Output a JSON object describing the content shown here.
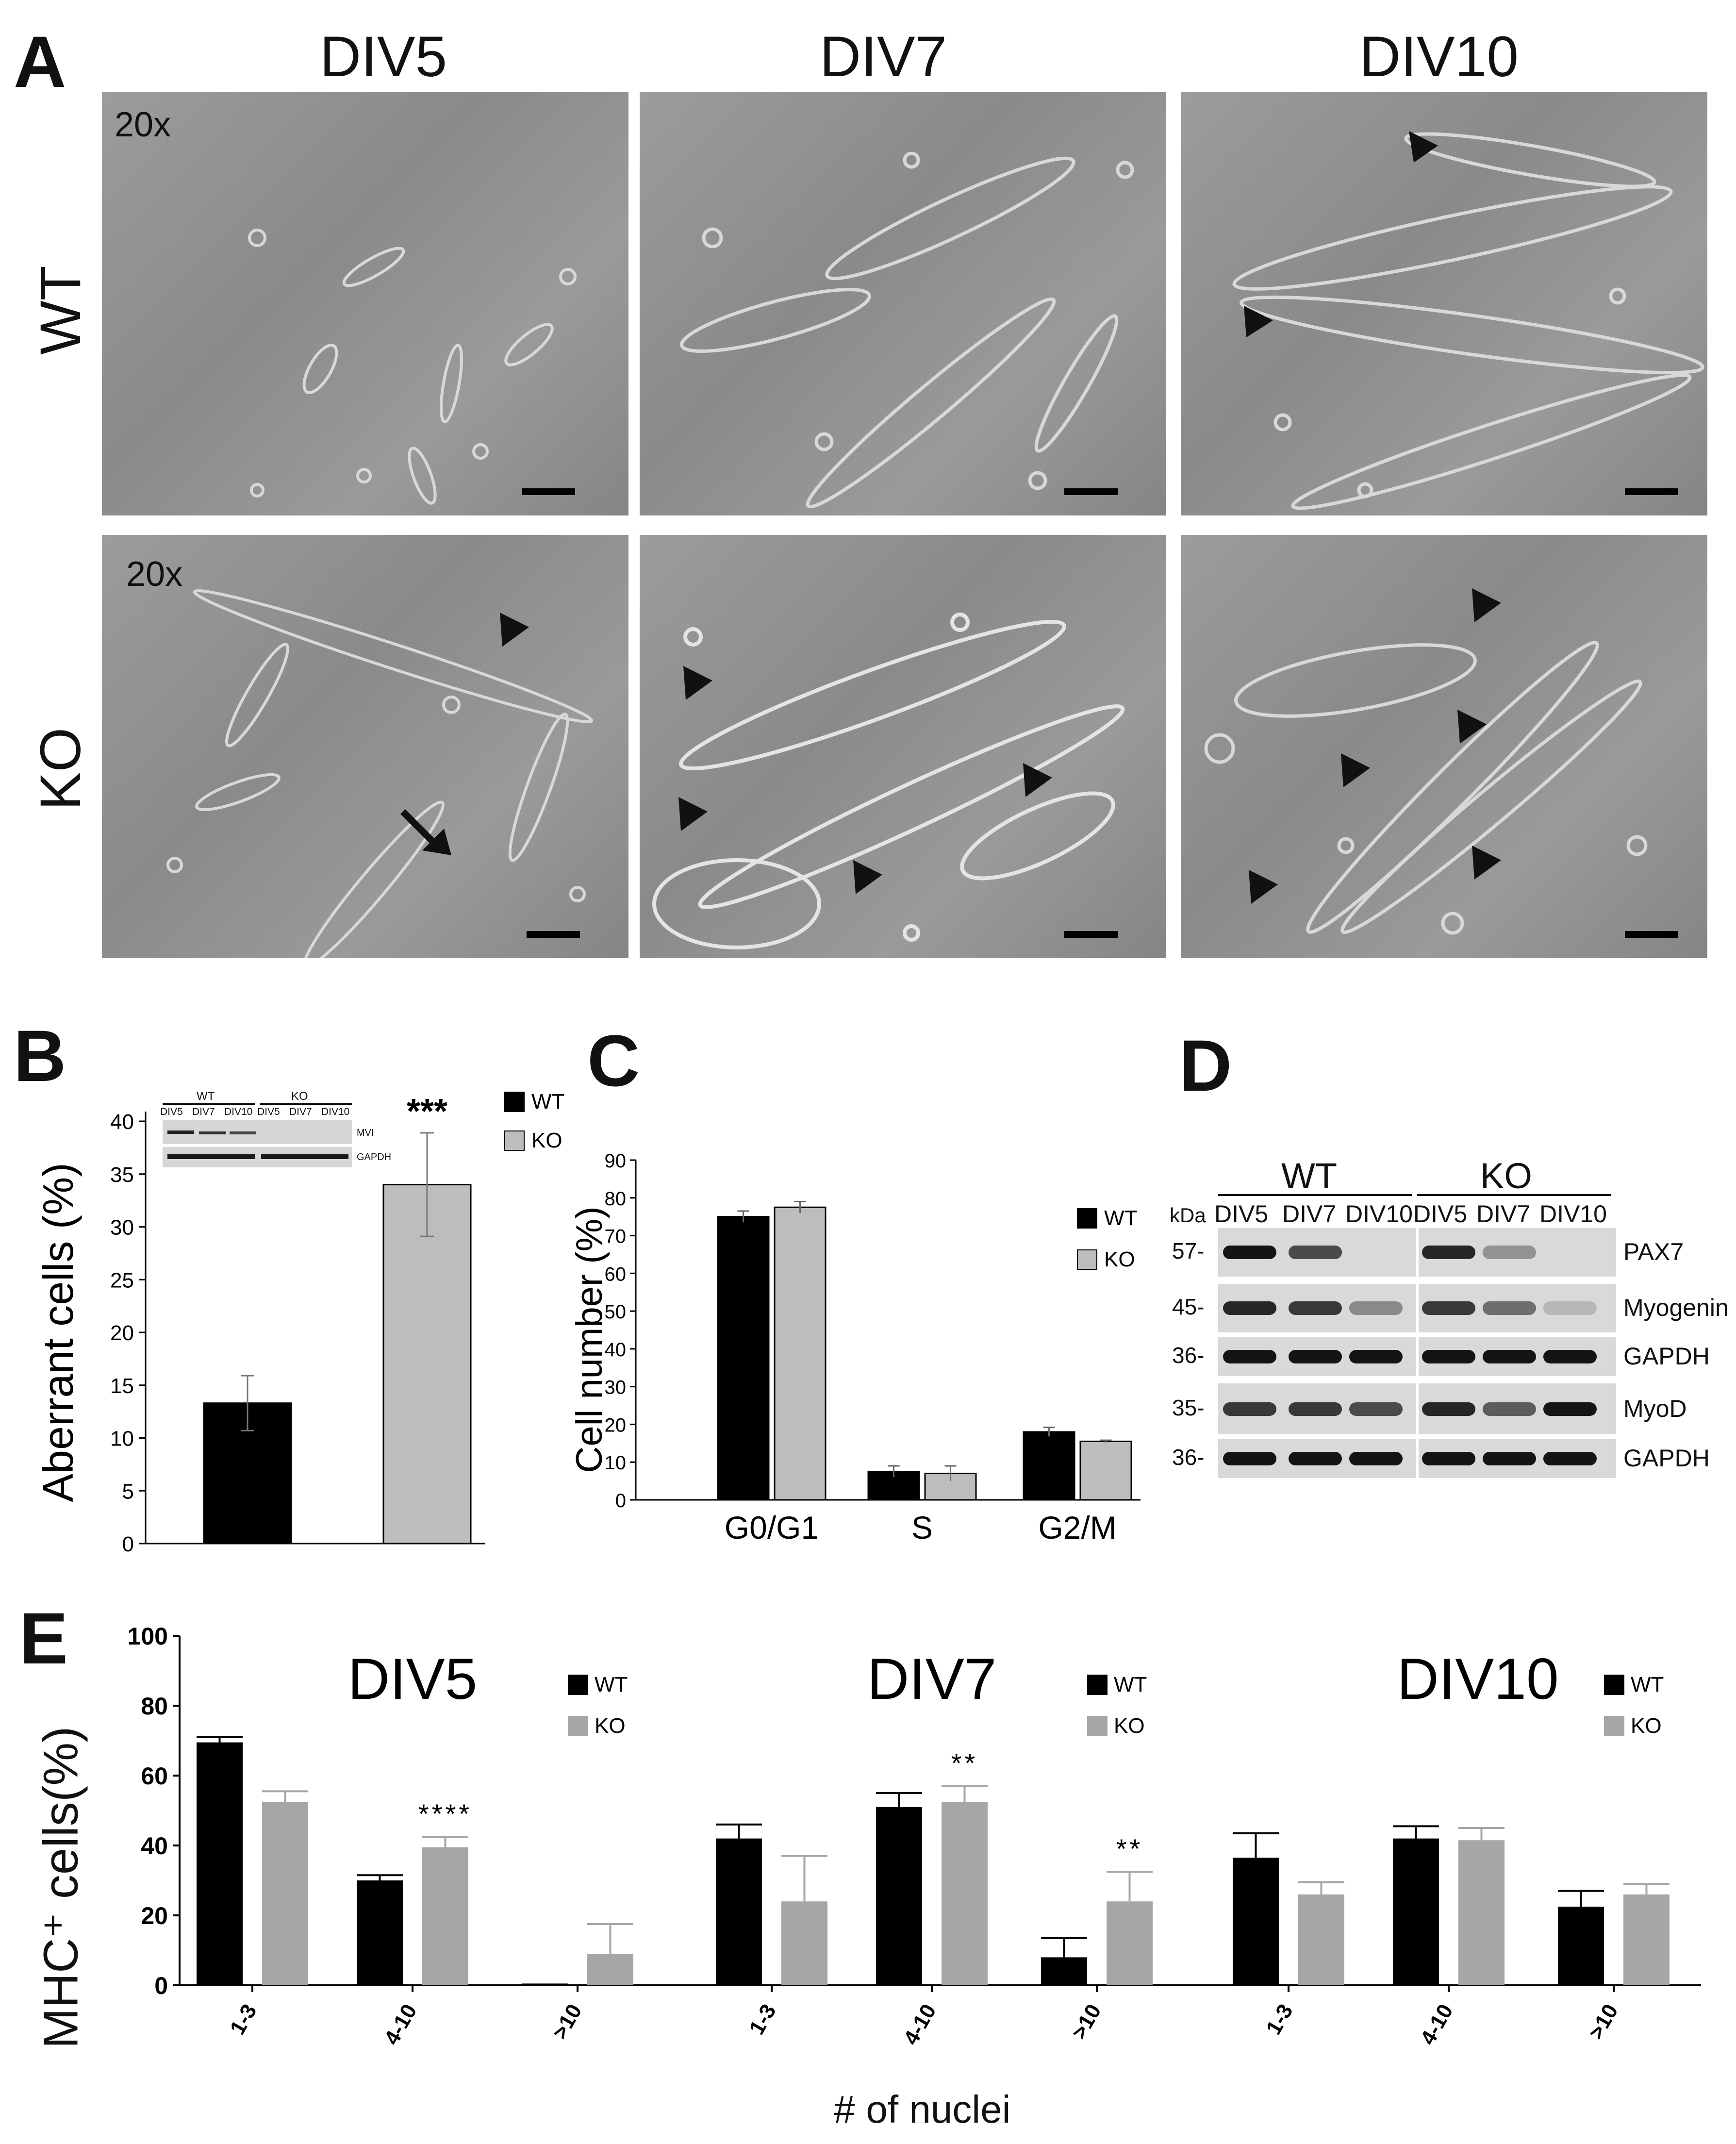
{
  "panel_A": {
    "letter": "A",
    "columns": [
      "DIV5",
      "DIV7",
      "DIV10"
    ],
    "rows": [
      "WT",
      "KO"
    ],
    "magnification": "20x"
  },
  "panel_B": {
    "letter": "B",
    "inset": {
      "groups": [
        "WT",
        "KO"
      ],
      "lanes": [
        "DIV5",
        "DIV7",
        "DIV10",
        "DIV5",
        "DIV7",
        "DIV10"
      ],
      "bands": [
        "MVI",
        "GAPDH"
      ]
    },
    "chart_data": {
      "type": "bar",
      "categories": [
        "WT",
        "KO"
      ],
      "values": [
        13.3,
        34
      ],
      "errors": [
        2.6,
        4.9
      ],
      "ylabel": "Aberrant cells (%)",
      "ylim": [
        0,
        40
      ],
      "yticks": [
        0,
        5,
        10,
        15,
        20,
        25,
        30,
        35,
        40
      ],
      "significance": "***",
      "legend": [
        "WT",
        "KO"
      ],
      "colors": [
        "#000000",
        "#bdbdbd"
      ]
    }
  },
  "panel_C": {
    "letter": "C",
    "chart_data": {
      "type": "bar",
      "categories": [
        "G0/G1",
        "S",
        "G2/M"
      ],
      "series": [
        {
          "name": "WT",
          "values": [
            75,
            7.5,
            18
          ],
          "errors": [
            1.5,
            1.5,
            1.2
          ],
          "color": "#000000"
        },
        {
          "name": "KO",
          "values": [
            77.5,
            7,
            15.5
          ],
          "errors": [
            1.5,
            2,
            0.3
          ],
          "color": "#bdbdbd"
        }
      ],
      "ylabel": "Cell number (%)",
      "ylim": [
        0,
        90
      ],
      "yticks": [
        0,
        10,
        20,
        30,
        40,
        50,
        60,
        70,
        80,
        90
      ]
    }
  },
  "panel_D": {
    "letter": "D",
    "groups": [
      "WT",
      "KO"
    ],
    "unit": "kDa",
    "lanes": [
      "DIV5",
      "DIV7",
      "DIV10",
      "DIV5",
      "DIV7",
      "DIV10"
    ],
    "blots": [
      {
        "marker": "57-",
        "label": "PAX7"
      },
      {
        "marker": "45-",
        "label": "Myogenin"
      },
      {
        "marker": "36-",
        "label": "GAPDH"
      },
      {
        "marker": "35-",
        "label": "MyoD"
      },
      {
        "marker": "36-",
        "label": "GAPDH"
      }
    ]
  },
  "panel_E": {
    "letter": "E",
    "ylabel": "MHC⁺ cells(%)",
    "xlabel": "# of nuclei",
    "chart_data": [
      {
        "type": "bar",
        "title": "DIV5",
        "categories": [
          "1-3",
          "4-10",
          ">10"
        ],
        "series": [
          {
            "name": "WT",
            "values": [
              69.5,
              30,
              0.5
            ],
            "errors": [
              1.5,
              1.5,
              0
            ],
            "color": "#000000"
          },
          {
            "name": "KO",
            "values": [
              52.5,
              39.5,
              9
            ],
            "errors": [
              3,
              3,
              8.5
            ],
            "color": "#a6a6a6"
          }
        ],
        "significance": [
          {
            "category": "4-10",
            "text": "****"
          }
        ],
        "ylim": [
          0,
          100
        ],
        "yticks": [
          0,
          20,
          40,
          60,
          80,
          100
        ]
      },
      {
        "type": "bar",
        "title": "DIV7",
        "categories": [
          "1-3",
          "4-10",
          ">10"
        ],
        "series": [
          {
            "name": "WT",
            "values": [
              42,
              51,
              8
            ],
            "errors": [
              4,
              4,
              5.5
            ],
            "color": "#000000"
          },
          {
            "name": "KO",
            "values": [
              24,
              52.5,
              24
            ],
            "errors": [
              13,
              4.5,
              8.5
            ],
            "color": "#a6a6a6"
          }
        ],
        "significance": [
          {
            "category": "4-10",
            "text": "**"
          },
          {
            "category": ">10",
            "text": "**"
          }
        ],
        "ylim": [
          0,
          100
        ],
        "yticks": [
          0,
          20,
          40,
          60,
          80,
          100
        ]
      },
      {
        "type": "bar",
        "title": "DIV10",
        "categories": [
          "1-3",
          "4-10",
          ">10"
        ],
        "series": [
          {
            "name": "WT",
            "values": [
              36.5,
              42,
              22.5
            ],
            "errors": [
              7,
              3.5,
              4.5
            ],
            "color": "#000000"
          },
          {
            "name": "KO",
            "values": [
              26,
              41.5,
              26
            ],
            "errors": [
              3.5,
              3.5,
              3
            ],
            "color": "#a6a6a6"
          }
        ],
        "significance": [],
        "ylim": [
          0,
          100
        ],
        "yticks": [
          0,
          20,
          40,
          60,
          80,
          100
        ]
      }
    ]
  }
}
